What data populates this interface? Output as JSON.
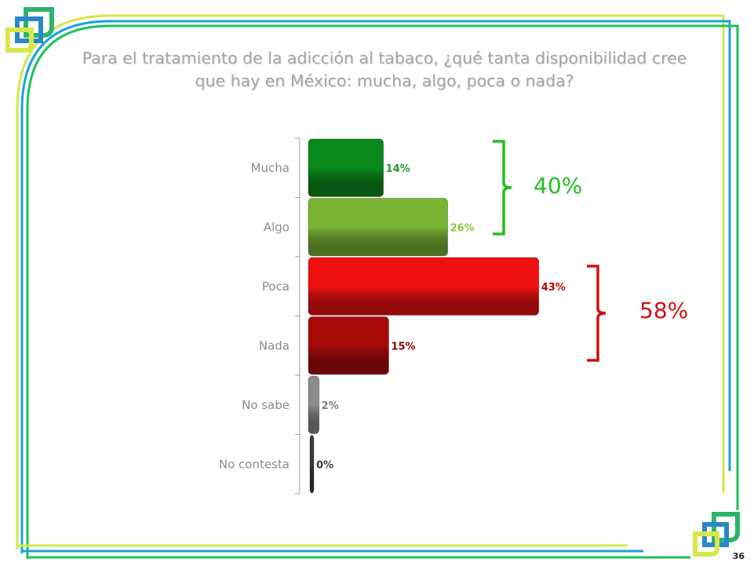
{
  "title": "Para el tratamiento de la adicción al tabaco, ¿qué tanta disponibilidad cree que hay en México: mucha, algo, poca o nada?",
  "page_number": "36",
  "colors": {
    "frame_yellow": "#d4e84a",
    "frame_blue": "#1ea0dc",
    "frame_green": "#1fc25a",
    "bracket_green": "#22c022",
    "bracket_red": "#d01010"
  },
  "chart_data": {
    "type": "bar",
    "orientation": "horizontal",
    "categories": [
      "Mucha",
      "Algo",
      "Poca",
      "Nada",
      "No sabe",
      "No contesta"
    ],
    "values": [
      14,
      26,
      43,
      15,
      2,
      0
    ],
    "data_labels": [
      "14%",
      "26%",
      "43%",
      "15%",
      "2%",
      "0%"
    ],
    "bar_colors": [
      "#0a8a1a",
      "#7ab535",
      "#f01010",
      "#a80a0a",
      "#8c8c8c",
      "#3a3a3a"
    ],
    "label_colors": [
      "#1a9a3a",
      "#8cc63e",
      "#c00000",
      "#8b0000",
      "#808080",
      "#404040"
    ],
    "groups": [
      {
        "label": "40%",
        "categories": [
          "Mucha",
          "Algo"
        ],
        "color": "#22c022"
      },
      {
        "label": "58%",
        "categories": [
          "Poca",
          "Nada"
        ],
        "color": "#d01010"
      }
    ],
    "grid": false,
    "legend": "none"
  }
}
